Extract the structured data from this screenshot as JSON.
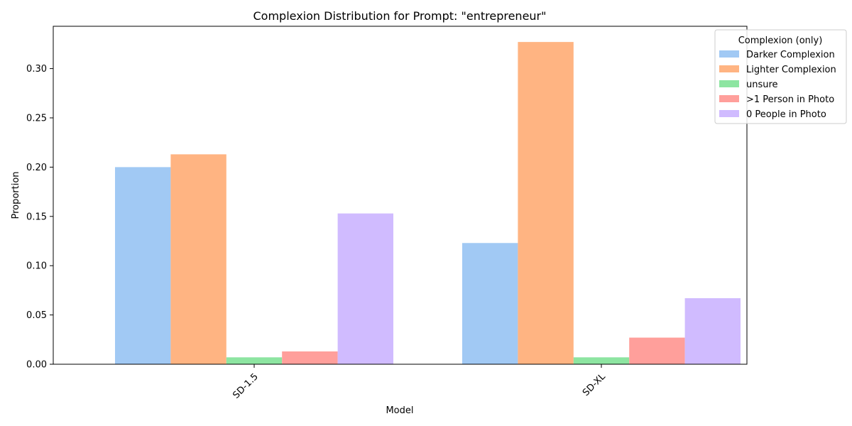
{
  "chart_data": {
    "type": "bar",
    "title": "Complexion Distribution for Prompt: \"entrepreneur\"",
    "xlabel": "Model",
    "ylabel": "Proportion",
    "categories": [
      "SD-1.5",
      "SD-XL"
    ],
    "ylim": [
      0,
      0.34
    ],
    "yticks": [
      "0.00",
      "0.05",
      "0.10",
      "0.15",
      "0.20",
      "0.25",
      "0.30"
    ],
    "grid": false,
    "legend": {
      "title": "Complexion (only)",
      "placement": "top-right, outside plot"
    },
    "series": [
      {
        "name": "Darker Complexion",
        "color": "#a1c9f4",
        "values": [
          0.2,
          0.123
        ]
      },
      {
        "name": "Lighter Complexion",
        "color": "#ffb482",
        "values": [
          0.213,
          0.327
        ]
      },
      {
        "name": "unsure",
        "color": "#8de5a1",
        "values": [
          0.007,
          0.007
        ]
      },
      {
        "name": ">1 Person in Photo",
        "color": "#ff9f9b",
        "values": [
          0.013,
          0.027
        ]
      },
      {
        "name": "0 People in Photo",
        "color": "#d0bbff",
        "values": [
          0.153,
          0.067
        ]
      }
    ]
  }
}
